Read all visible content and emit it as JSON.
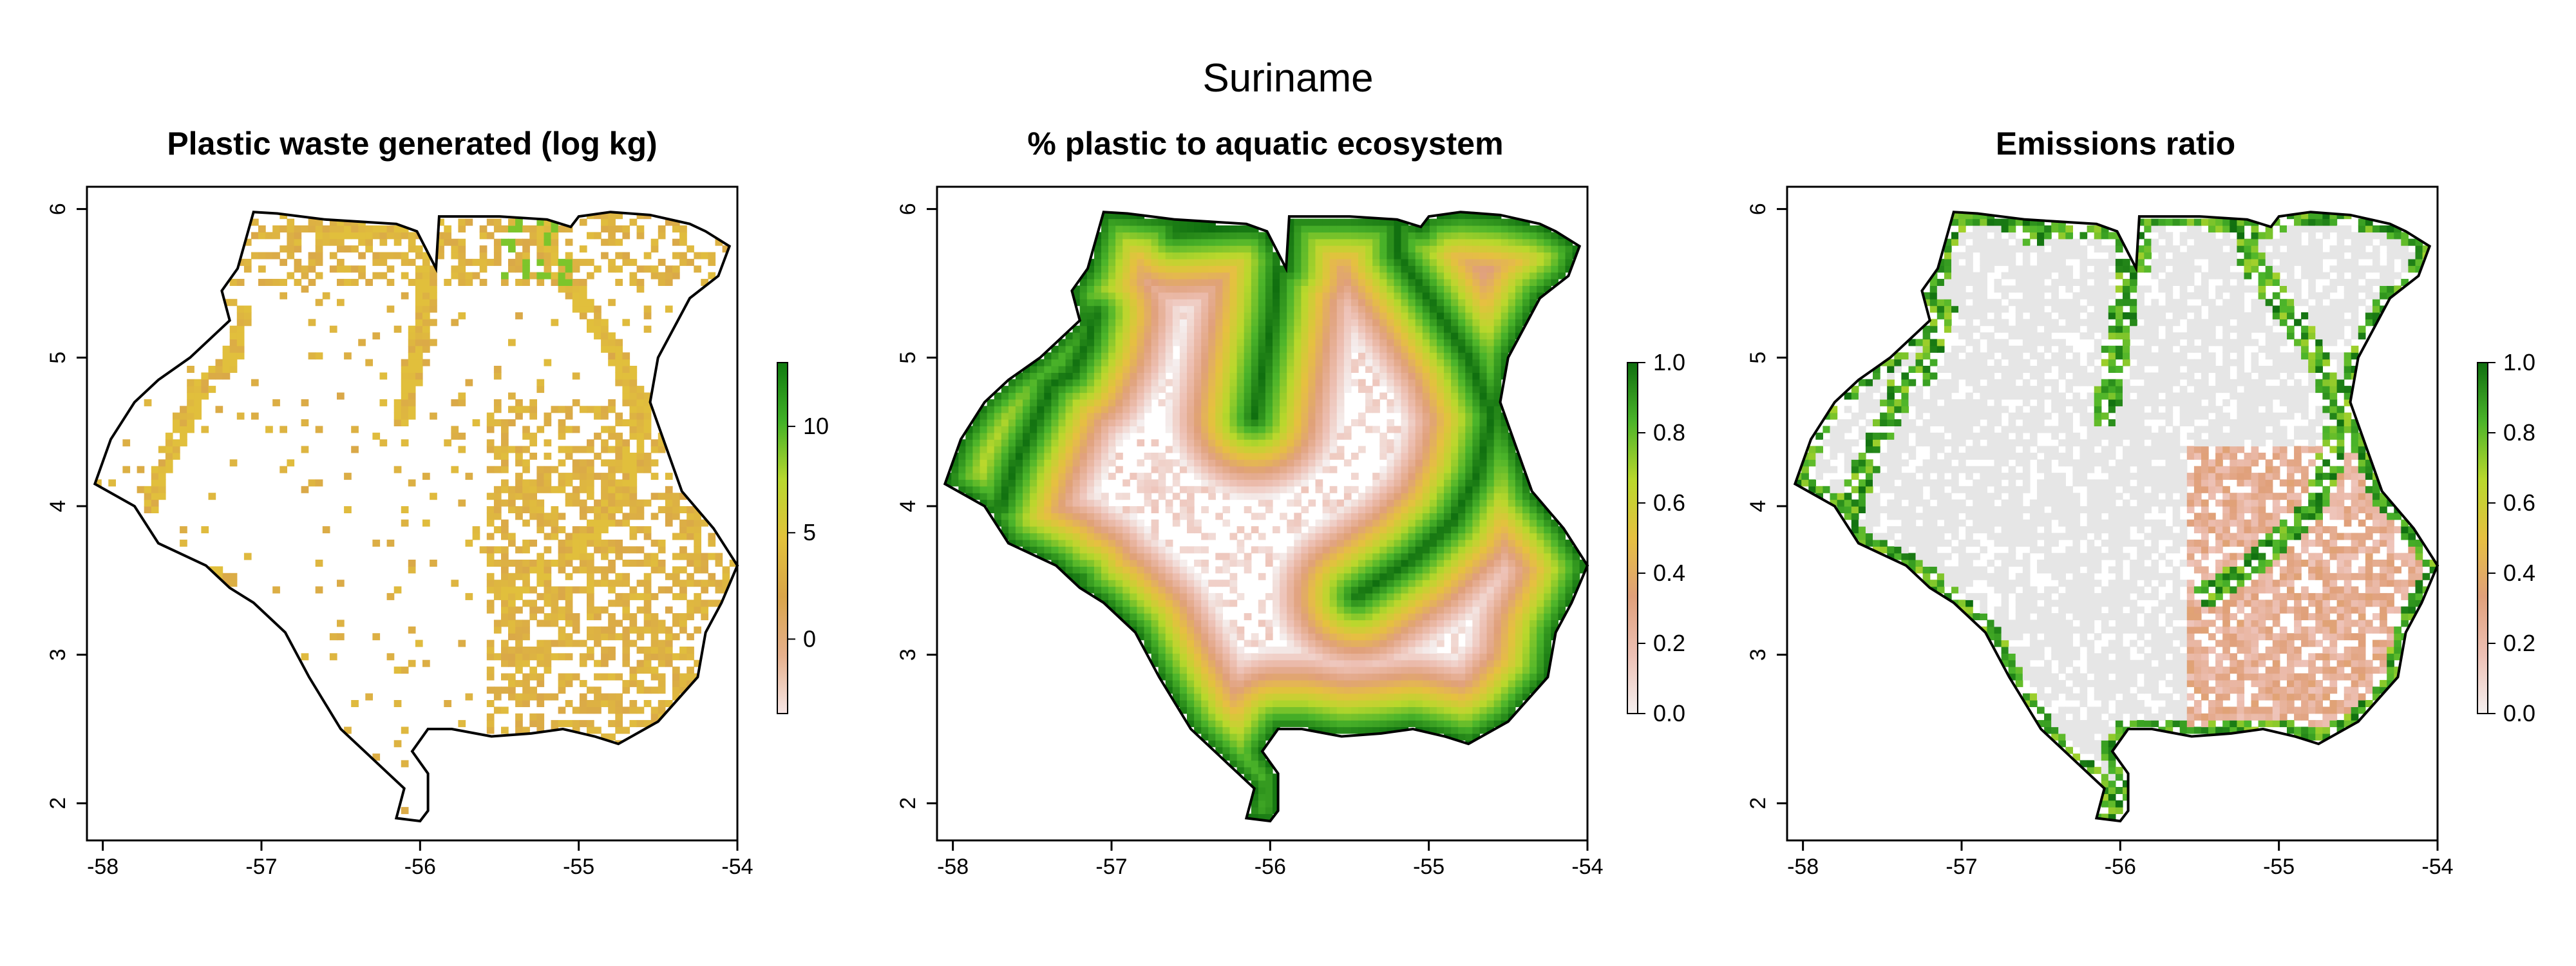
{
  "figure": {
    "title": "Suriname"
  },
  "panels": [
    {
      "title": "Plastic waste generated (log kg)",
      "x_ticks": [
        "-58",
        "-57",
        "-56",
        "-55",
        "-54"
      ],
      "y_ticks": [
        "2",
        "3",
        "4",
        "5",
        "6"
      ],
      "colorbar": {
        "min": -3.5,
        "max": 13,
        "ticks": [
          "0",
          "5",
          "10"
        ],
        "tick_values": [
          0,
          5,
          10
        ],
        "colors": [
          "#f7e6e6",
          "#e6b08c",
          "#d9a54a",
          "#e2c23a",
          "#b8d82e",
          "#41b127",
          "#0f7a0f"
        ]
      }
    },
    {
      "title": "% plastic to aquatic ecosystem",
      "x_ticks": [
        "-58",
        "-57",
        "-56",
        "-55",
        "-54"
      ],
      "y_ticks": [
        "2",
        "3",
        "4",
        "5",
        "6"
      ],
      "colorbar": {
        "min": 0,
        "max": 1,
        "ticks": [
          "0.0",
          "0.2",
          "0.4",
          "0.6",
          "0.8",
          "1.0"
        ],
        "tick_values": [
          0,
          0.2,
          0.4,
          0.6,
          0.8,
          1.0
        ],
        "colors": [
          "#f5f0f0",
          "#edc0b4",
          "#e0a07a",
          "#e6c040",
          "#b9d82c",
          "#4bb42a",
          "#0f6e0f"
        ]
      }
    },
    {
      "title": "Emissions ratio",
      "x_ticks": [
        "-58",
        "-57",
        "-56",
        "-55",
        "-54"
      ],
      "y_ticks": [
        "2",
        "3",
        "4",
        "5",
        "6"
      ],
      "colorbar": {
        "min": 0,
        "max": 1,
        "ticks": [
          "0.0",
          "0.2",
          "0.4",
          "0.6",
          "0.8",
          "1.0"
        ],
        "tick_values": [
          0,
          0.2,
          0.4,
          0.6,
          0.8,
          1.0
        ],
        "colors": [
          "#f5f0f0",
          "#edc0b4",
          "#e0a07a",
          "#e6c040",
          "#b9d82c",
          "#4bb42a",
          "#0f6e0f"
        ]
      }
    }
  ],
  "map": {
    "xlim": [
      -58.1,
      -54.0
    ],
    "ylim": [
      1.75,
      6.15
    ],
    "country_outline": [
      [
        -57.05,
        5.98
      ],
      [
        -56.9,
        5.97
      ],
      [
        -56.6,
        5.93
      ],
      [
        -56.15,
        5.9
      ],
      [
        -56.02,
        5.85
      ],
      [
        -55.9,
        5.6
      ],
      [
        -55.88,
        5.95
      ],
      [
        -55.5,
        5.95
      ],
      [
        -55.2,
        5.93
      ],
      [
        -55.05,
        5.88
      ],
      [
        -55.0,
        5.95
      ],
      [
        -54.8,
        5.98
      ],
      [
        -54.55,
        5.96
      ],
      [
        -54.3,
        5.9
      ],
      [
        -54.2,
        5.85
      ],
      [
        -54.05,
        5.75
      ],
      [
        -54.12,
        5.55
      ],
      [
        -54.3,
        5.4
      ],
      [
        -54.4,
        5.2
      ],
      [
        -54.5,
        5.0
      ],
      [
        -54.55,
        4.7
      ],
      [
        -54.45,
        4.4
      ],
      [
        -54.35,
        4.1
      ],
      [
        -54.15,
        3.85
      ],
      [
        -54.0,
        3.6
      ],
      [
        -54.1,
        3.35
      ],
      [
        -54.2,
        3.15
      ],
      [
        -54.25,
        2.85
      ],
      [
        -54.5,
        2.55
      ],
      [
        -54.75,
        2.4
      ],
      [
        -54.9,
        2.45
      ],
      [
        -55.1,
        2.5
      ],
      [
        -55.3,
        2.47
      ],
      [
        -55.55,
        2.45
      ],
      [
        -55.8,
        2.5
      ],
      [
        -55.95,
        2.5
      ],
      [
        -56.05,
        2.35
      ],
      [
        -55.95,
        2.2
      ],
      [
        -55.95,
        1.95
      ],
      [
        -56.0,
        1.88
      ],
      [
        -56.15,
        1.9
      ],
      [
        -56.1,
        2.1
      ],
      [
        -56.2,
        2.2
      ],
      [
        -56.35,
        2.35
      ],
      [
        -56.5,
        2.5
      ],
      [
        -56.7,
        2.85
      ],
      [
        -56.85,
        3.15
      ],
      [
        -57.05,
        3.35
      ],
      [
        -57.2,
        3.45
      ],
      [
        -57.35,
        3.6
      ],
      [
        -57.65,
        3.75
      ],
      [
        -57.8,
        4.0
      ],
      [
        -58.05,
        4.15
      ],
      [
        -57.95,
        4.45
      ],
      [
        -57.8,
        4.7
      ],
      [
        -57.65,
        4.85
      ],
      [
        -57.45,
        5.0
      ],
      [
        -57.3,
        5.15
      ],
      [
        -57.2,
        5.25
      ],
      [
        -57.25,
        5.45
      ],
      [
        -57.15,
        5.6
      ],
      [
        -57.05,
        5.98
      ]
    ]
  }
}
